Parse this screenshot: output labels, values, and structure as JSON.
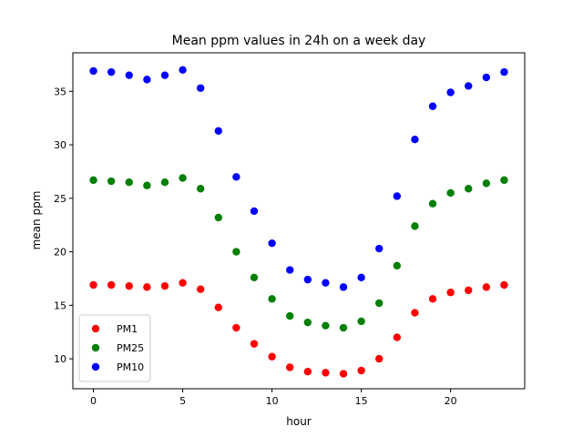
{
  "chart_data": {
    "type": "scatter",
    "title": "Mean ppm values in 24h on a week day",
    "xlabel": "hour",
    "ylabel": "mean ppm",
    "xlim": [
      -1.15,
      24.15
    ],
    "ylim": [
      7.2,
      38.6
    ],
    "xticks": [
      0,
      5,
      10,
      15,
      20
    ],
    "yticks": [
      10,
      15,
      20,
      25,
      30,
      35
    ],
    "grid": false,
    "legend_position": "lower-left",
    "x": [
      0,
      1,
      2,
      3,
      4,
      5,
      6,
      7,
      8,
      9,
      10,
      11,
      12,
      13,
      14,
      15,
      16,
      17,
      18,
      19,
      20,
      21,
      22,
      23
    ],
    "series": [
      {
        "name": "PM1",
        "color": "#ff0000",
        "values": [
          16.9,
          16.9,
          16.8,
          16.7,
          16.8,
          17.1,
          16.5,
          14.8,
          12.9,
          11.4,
          10.2,
          9.2,
          8.8,
          8.7,
          8.6,
          8.9,
          10.0,
          12.0,
          14.3,
          15.6,
          16.2,
          16.4,
          16.7,
          16.9
        ]
      },
      {
        "name": "PM25",
        "color": "#008000",
        "values": [
          26.7,
          26.6,
          26.5,
          26.2,
          26.5,
          26.9,
          25.9,
          23.2,
          20.0,
          17.6,
          15.6,
          14.0,
          13.4,
          13.1,
          12.9,
          13.5,
          15.2,
          18.7,
          22.4,
          24.5,
          25.5,
          25.9,
          26.4,
          26.7
        ]
      },
      {
        "name": "PM10",
        "color": "#0000ff",
        "values": [
          36.9,
          36.8,
          36.5,
          36.1,
          36.5,
          37.0,
          35.3,
          31.3,
          27.0,
          23.8,
          20.8,
          18.3,
          17.4,
          17.1,
          16.7,
          17.6,
          20.3,
          25.2,
          30.5,
          33.6,
          34.9,
          35.5,
          36.3,
          36.8
        ]
      }
    ]
  }
}
